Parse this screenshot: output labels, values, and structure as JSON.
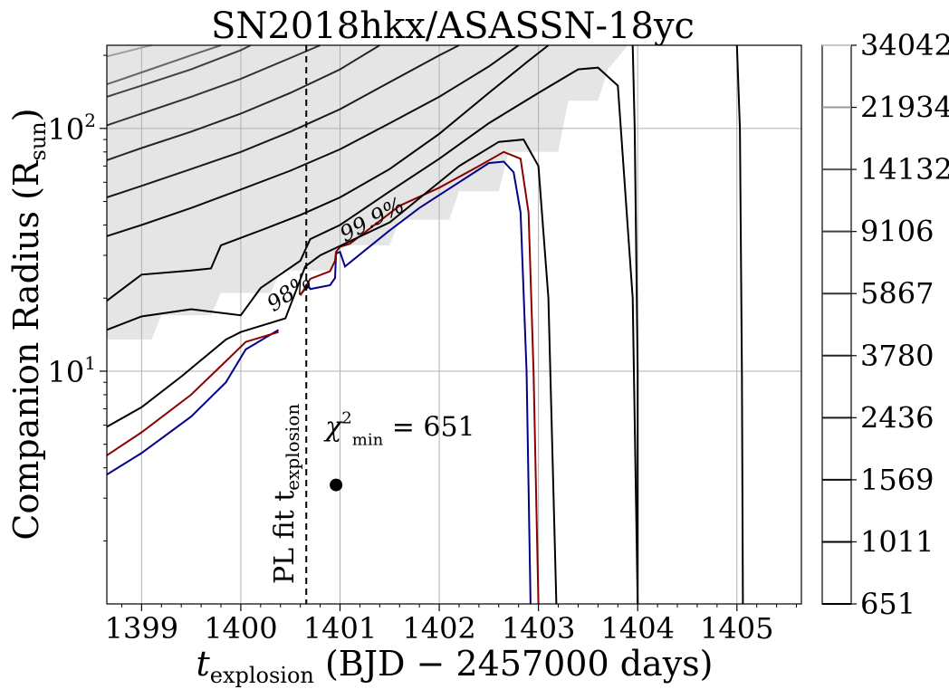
{
  "chart_data": {
    "type": "contour",
    "title": "SN2018hkx/ASASSN-18yc",
    "xlabel_main": "t",
    "xlabel_sub": "explosion",
    "xlabel_rest": " (BJD − 2457000 days)",
    "ylabel_main": "Companion Radius (R",
    "ylabel_sub": "sun",
    "ylabel_close": ")",
    "xlim": [
      1398.65,
      1405.65
    ],
    "ylim": [
      1.1,
      220
    ],
    "yscale": "log",
    "xticks": [
      1399,
      1400,
      1401,
      1402,
      1403,
      1404,
      1405
    ],
    "xticklabels": [
      "1399",
      "1400",
      "1401",
      "1402",
      "1403",
      "1404",
      "1405"
    ],
    "ytick_major": [
      10,
      100
    ],
    "ytick_labels": [
      {
        "base": "10",
        "exp": "1"
      },
      {
        "base": "10",
        "exp": "2"
      }
    ],
    "grid": true,
    "colorbar": {
      "levels": [
        651,
        1011,
        1569,
        2436,
        3780,
        5867,
        9106,
        14132,
        21934,
        34042
      ],
      "labels": [
        "651",
        "1011",
        "1569",
        "2436",
        "3780",
        "5867",
        "9106",
        "14132",
        "21934",
        "34042"
      ],
      "colors": [
        "#000000",
        "#000000",
        "#0d0d0d",
        "#1a1a1a",
        "#262626",
        "#333333",
        "#404040",
        "#555555",
        "#999999",
        "#c8c8c8"
      ]
    },
    "excluded_region_color": "#e5e5e5",
    "pl_fit_line": {
      "x": 1400.66,
      "label_main": "PL fit  t",
      "label_sub": "explosion"
    },
    "best_fit": {
      "x": 1400.96,
      "y": 3.4,
      "label_main": "χ",
      "label_sup": "2",
      "label_sub": "min",
      "label_rest": " = 651"
    },
    "confidence_labels": [
      {
        "text": "98%",
        "color": "#00008b"
      },
      {
        "text": "99.9%",
        "color": "#8b0000"
      }
    ],
    "series": [
      {
        "name": "98%",
        "color": "#00008b",
        "points": [
          [
            1398.65,
            3.75
          ],
          [
            1399.0,
            4.6
          ],
          [
            1399.5,
            6.5
          ],
          [
            1399.85,
            9.0
          ],
          [
            1400.05,
            12.3
          ],
          [
            1400.38,
            14.8
          ]
        ]
      },
      {
        "name": "98% upper",
        "color": "#00008b",
        "points": [
          [
            1400.6,
            20.7
          ],
          [
            1400.68,
            22.5
          ],
          [
            1400.7,
            21.8
          ],
          [
            1400.9,
            22.6
          ],
          [
            1400.95,
            24.2
          ],
          [
            1400.96,
            30.5
          ],
          [
            1401.0,
            31.0
          ],
          [
            1401.05,
            27.0
          ],
          [
            1401.5,
            38.0
          ],
          [
            1401.8,
            47.0
          ],
          [
            1402.2,
            60.0
          ],
          [
            1402.5,
            72.0
          ],
          [
            1402.65,
            73.0
          ],
          [
            1402.75,
            66.0
          ],
          [
            1402.82,
            45.0
          ],
          [
            1402.88,
            10.0
          ],
          [
            1402.92,
            1.1
          ]
        ]
      },
      {
        "name": "99.9%",
        "color": "#8b0000",
        "points": [
          [
            1398.65,
            4.5
          ],
          [
            1399.0,
            5.6
          ],
          [
            1399.5,
            8.0
          ],
          [
            1399.85,
            11.0
          ],
          [
            1400.05,
            13.2
          ],
          [
            1400.38,
            14.5
          ]
        ]
      },
      {
        "name": "99.9% upper",
        "color": "#8b0000",
        "points": [
          [
            1400.6,
            20.5
          ],
          [
            1400.7,
            24.0
          ],
          [
            1400.9,
            25.8
          ],
          [
            1400.95,
            28.5
          ],
          [
            1400.96,
            31.0
          ],
          [
            1401.0,
            32.5
          ],
          [
            1401.1,
            33.5
          ],
          [
            1401.6,
            48.0
          ],
          [
            1402.0,
            57.0
          ],
          [
            1402.4,
            70.0
          ],
          [
            1402.65,
            80.0
          ],
          [
            1402.82,
            75.0
          ],
          [
            1402.9,
            45.0
          ],
          [
            1402.95,
            10.0
          ],
          [
            1403.0,
            1.1
          ]
        ]
      },
      {
        "name": "651 contour",
        "color": "#000000",
        "points": [
          [
            1398.65,
            5.9
          ],
          [
            1399.0,
            7.1
          ],
          [
            1399.4,
            9.5
          ],
          [
            1399.85,
            13.5
          ],
          [
            1400.0,
            14.5
          ],
          [
            1400.45,
            16.5
          ],
          [
            1400.65,
            27.0
          ],
          [
            1400.8,
            30.0
          ],
          [
            1401.0,
            32.8
          ],
          [
            1401.5,
            41.0
          ],
          [
            1402.2,
            70.0
          ],
          [
            1402.6,
            88.0
          ],
          [
            1402.85,
            90.0
          ],
          [
            1403.0,
            70.0
          ],
          [
            1403.1,
            20.0
          ],
          [
            1403.18,
            1.1
          ]
        ]
      },
      {
        "name": "651 outer",
        "color": "#000000",
        "points": [
          [
            1398.65,
            14.8
          ],
          [
            1399.0,
            16.8
          ],
          [
            1399.5,
            18.0
          ],
          [
            1400.0,
            17.0
          ],
          [
            1400.2,
            22.0
          ],
          [
            1400.6,
            28.5
          ],
          [
            1400.7,
            35.0
          ],
          [
            1401.0,
            40.0
          ],
          [
            1401.5,
            55.0
          ],
          [
            1402.0,
            75.0
          ],
          [
            1402.5,
            105.0
          ],
          [
            1403.0,
            140.0
          ],
          [
            1403.4,
            175.0
          ],
          [
            1403.6,
            178.0
          ],
          [
            1403.8,
            150.0
          ],
          [
            1403.95,
            20.0
          ],
          [
            1404.0,
            1.1
          ]
        ]
      },
      {
        "name": "1011",
        "color": "#000000",
        "points": [
          [
            1398.65,
            19.5
          ],
          [
            1399.0,
            25.0
          ],
          [
            1399.5,
            26.0
          ],
          [
            1399.7,
            26.5
          ],
          [
            1399.8,
            33.0
          ],
          [
            1400.2,
            38.0
          ],
          [
            1400.6,
            44.0
          ],
          [
            1401.0,
            52.0
          ],
          [
            1401.5,
            68.0
          ],
          [
            1402.0,
            95.0
          ],
          [
            1402.5,
            140.0
          ],
          [
            1402.9,
            190.0
          ],
          [
            1403.1,
            220.0
          ]
        ]
      },
      {
        "name": "1569",
        "color": "#0d0d0d",
        "points": [
          [
            1398.65,
            36.0
          ],
          [
            1399.0,
            40.0
          ],
          [
            1399.5,
            47.0
          ],
          [
            1400.0,
            56.0
          ],
          [
            1400.5,
            67.0
          ],
          [
            1401.0,
            82.0
          ],
          [
            1401.5,
            105.0
          ],
          [
            1402.0,
            135.0
          ],
          [
            1402.5,
            180.0
          ],
          [
            1402.8,
            220.0
          ]
        ]
      },
      {
        "name": "2436",
        "color": "#1a1a1a",
        "points": [
          [
            1398.65,
            52.0
          ],
          [
            1399.0,
            58.0
          ],
          [
            1399.5,
            68.0
          ],
          [
            1400.0,
            80.0
          ],
          [
            1400.5,
            97.0
          ],
          [
            1401.0,
            120.0
          ],
          [
            1401.5,
            155.0
          ],
          [
            1402.0,
            200.0
          ],
          [
            1402.2,
            220.0
          ]
        ]
      },
      {
        "name": "3780",
        "color": "#262626",
        "points": [
          [
            1398.65,
            74.0
          ],
          [
            1399.0,
            83.0
          ],
          [
            1399.5,
            97.0
          ],
          [
            1400.0,
            115.0
          ],
          [
            1400.5,
            140.0
          ],
          [
            1401.0,
            175.0
          ],
          [
            1401.4,
            220.0
          ]
        ]
      },
      {
        "name": "5867",
        "color": "#333333",
        "points": [
          [
            1398.65,
            103.0
          ],
          [
            1399.0,
            115.0
          ],
          [
            1399.5,
            135.0
          ],
          [
            1400.0,
            160.0
          ],
          [
            1400.5,
            195.0
          ],
          [
            1400.8,
            220.0
          ]
        ]
      },
      {
        "name": "9106",
        "color": "#404040",
        "points": [
          [
            1398.65,
            135.0
          ],
          [
            1399.0,
            150.0
          ],
          [
            1399.5,
            175.0
          ],
          [
            1400.0,
            210.0
          ],
          [
            1400.1,
            220.0
          ]
        ]
      },
      {
        "name": "14132",
        "color": "#666666",
        "points": [
          [
            1398.65,
            152.0
          ],
          [
            1399.0,
            170.0
          ],
          [
            1399.5,
            200.0
          ],
          [
            1399.8,
            220.0
          ]
        ]
      },
      {
        "name": "21934",
        "color": "#a0a0a0",
        "points": [
          [
            1398.65,
            198.0
          ],
          [
            1399.0,
            215.0
          ],
          [
            1399.1,
            220.0
          ]
        ]
      },
      {
        "name": "651 right1",
        "color": "#000000",
        "points": [
          [
            1405.0,
            220.0
          ],
          [
            1405.03,
            100.0
          ],
          [
            1405.05,
            10.0
          ],
          [
            1405.06,
            1.1
          ]
        ]
      },
      {
        "name": "651 right2",
        "color": "#000000",
        "points": [
          [
            1403.95,
            220.0
          ],
          [
            1403.97,
            100.0
          ],
          [
            1404.0,
            10.0
          ],
          [
            1404.0,
            1.1
          ]
        ]
      }
    ],
    "excluded_region_steps": [
      [
        1398.65,
        13.5
      ],
      [
        1399.1,
        13.5
      ],
      [
        1399.2,
        17.0
      ],
      [
        1399.7,
        17.0
      ],
      [
        1399.8,
        21.0
      ],
      [
        1400.3,
        21.0
      ],
      [
        1400.4,
        26.0
      ],
      [
        1400.9,
        26.0
      ],
      [
        1401.0,
        33.0
      ],
      [
        1401.5,
        33.0
      ],
      [
        1401.6,
        42.0
      ],
      [
        1402.1,
        42.0
      ],
      [
        1402.2,
        55.0
      ],
      [
        1402.6,
        55.0
      ],
      [
        1402.7,
        80.0
      ],
      [
        1403.2,
        80.0
      ],
      [
        1403.3,
        130.0
      ],
      [
        1403.6,
        130.0
      ],
      [
        1403.7,
        175.0
      ],
      [
        1403.9,
        220.0
      ]
    ]
  }
}
